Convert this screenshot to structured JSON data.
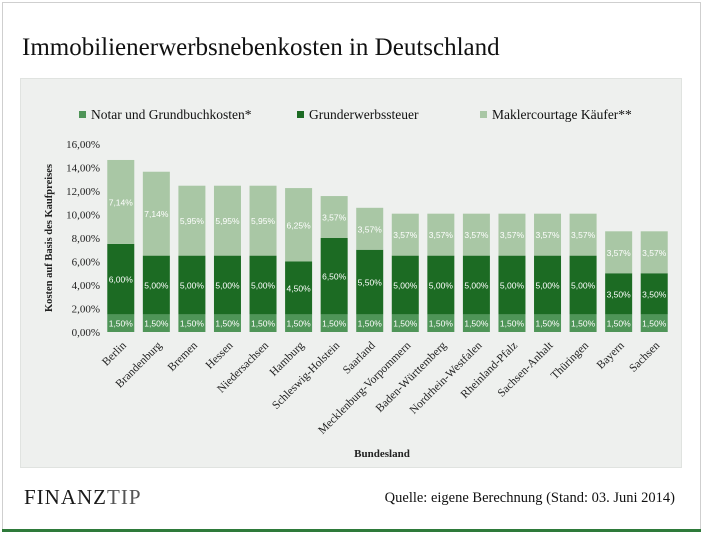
{
  "page": {
    "title": "Immobilienerwerbsnebenkosten in Deutschland",
    "brand_part1": "FINANZ",
    "brand_part2": "TIP",
    "source": "Quelle:  eigene Berechnung (Stand: 03. Juni 2014)"
  },
  "colors": {
    "notar": "#4f9558",
    "grunderwerb": "#1c6b23",
    "makler": "#a9c7a5",
    "panel": "#eef0ee",
    "accent_line": "#2e7a3a"
  },
  "chart_data": {
    "type": "bar",
    "stacked": true,
    "title": "",
    "xlabel": "Bundesland",
    "ylabel": "Kosten auf Basis des Kaufpreises",
    "ylim": [
      0,
      16
    ],
    "yticks": [
      "0,00%",
      "2,00%",
      "4,00%",
      "6,00%",
      "8,00%",
      "10,00%",
      "12,00%",
      "14,00%",
      "16,00%"
    ],
    "ytick_values": [
      0,
      2,
      4,
      6,
      8,
      10,
      12,
      14,
      16
    ],
    "grid": false,
    "legend_position": "top",
    "categories": [
      "Berlin",
      "Brandenburg",
      "Bremen",
      "Hessen",
      "Niedersachsen",
      "Hamburg",
      "Schleswig-Holstein",
      "Saarland",
      "Mecklenburg-Vorpommern",
      "Baden-Württemberg",
      "Nordrhein-Westfalen",
      "Rheinland-Pfalz",
      "Sachsen-Anhalt",
      "Thüringen",
      "Bayern",
      "Sachsen"
    ],
    "series": [
      {
        "name": "Notar und Grundbuchkosten*",
        "color": "#4f9558",
        "values": [
          1.5,
          1.5,
          1.5,
          1.5,
          1.5,
          1.5,
          1.5,
          1.5,
          1.5,
          1.5,
          1.5,
          1.5,
          1.5,
          1.5,
          1.5,
          1.5
        ],
        "labels": [
          "1,50%",
          "1,50%",
          "1,50%",
          "1,50%",
          "1,50%",
          "1,50%",
          "1,50%",
          "1,50%",
          "1,50%",
          "1,50%",
          "1,50%",
          "1,50%",
          "1,50%",
          "1,50%",
          "1,50%",
          "1,50%"
        ]
      },
      {
        "name": "Grunderwerbssteuer",
        "color": "#1c6b23",
        "values": [
          6.0,
          5.0,
          5.0,
          5.0,
          5.0,
          4.5,
          6.5,
          5.5,
          5.0,
          5.0,
          5.0,
          5.0,
          5.0,
          5.0,
          3.5,
          3.5
        ],
        "labels": [
          "6,00%",
          "5,00%",
          "5,00%",
          "5,00%",
          "5,00%",
          "4,50%",
          "6,50%",
          "5,50%",
          "5,00%",
          "5,00%",
          "5,00%",
          "5,00%",
          "5,00%",
          "5,00%",
          "3,50%",
          "3,50%"
        ]
      },
      {
        "name": "Maklercourtage Käufer**",
        "color": "#a9c7a5",
        "values": [
          7.14,
          7.14,
          5.95,
          5.95,
          5.95,
          6.25,
          3.57,
          3.57,
          3.57,
          3.57,
          3.57,
          3.57,
          3.57,
          3.57,
          3.57,
          3.57
        ],
        "labels": [
          "7,14%",
          "7,14%",
          "5,95%",
          "5,95%",
          "5,95%",
          "6,25%",
          "3,57%",
          "3,57%",
          "3,57%",
          "3,57%",
          "3,57%",
          "3,57%",
          "3,57%",
          "3,57%",
          "3,57%",
          "3,57%"
        ]
      }
    ]
  }
}
